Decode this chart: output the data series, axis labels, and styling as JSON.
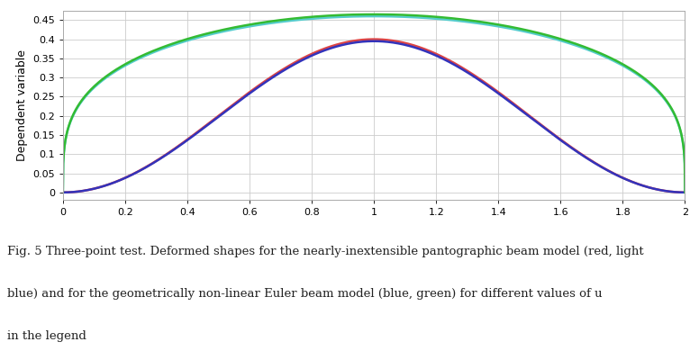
{
  "title": "",
  "xlabel": "",
  "ylabel": "Dependent variable",
  "xlim": [
    0,
    2
  ],
  "ylim": [
    -0.02,
    0.475
  ],
  "yticks": [
    0,
    0.05,
    0.1,
    0.15,
    0.2,
    0.25,
    0.3,
    0.35,
    0.4,
    0.45
  ],
  "xticks": [
    0,
    0.2,
    0.4,
    0.6,
    0.8,
    1,
    1.2,
    1.4,
    1.6,
    1.8,
    2
  ],
  "curves": [
    {
      "label": "pantographic red",
      "color": "#dd4444",
      "peak": 0.4,
      "style": "wide",
      "lw": 1.8
    },
    {
      "label": "pantographic light blue",
      "color": "#55cccc",
      "peak": 0.46,
      "style": "narrow",
      "lw": 1.8
    },
    {
      "label": "euler blue",
      "color": "#3333bb",
      "peak": 0.395,
      "style": "wide",
      "lw": 1.8
    },
    {
      "label": "euler green",
      "color": "#33bb33",
      "peak": 0.465,
      "style": "narrow",
      "lw": 1.8
    }
  ],
  "bg_color": "#ffffff",
  "grid_color": "#cccccc",
  "caption_lines": [
    "Fig. 5 Three-point test. Deformed shapes for the nearly-inextensible pantographic beam model (red, light",
    "blue) and for the geometrically non-linear Euler beam model (blue, green) for different values of u",
    "in the legend"
  ]
}
